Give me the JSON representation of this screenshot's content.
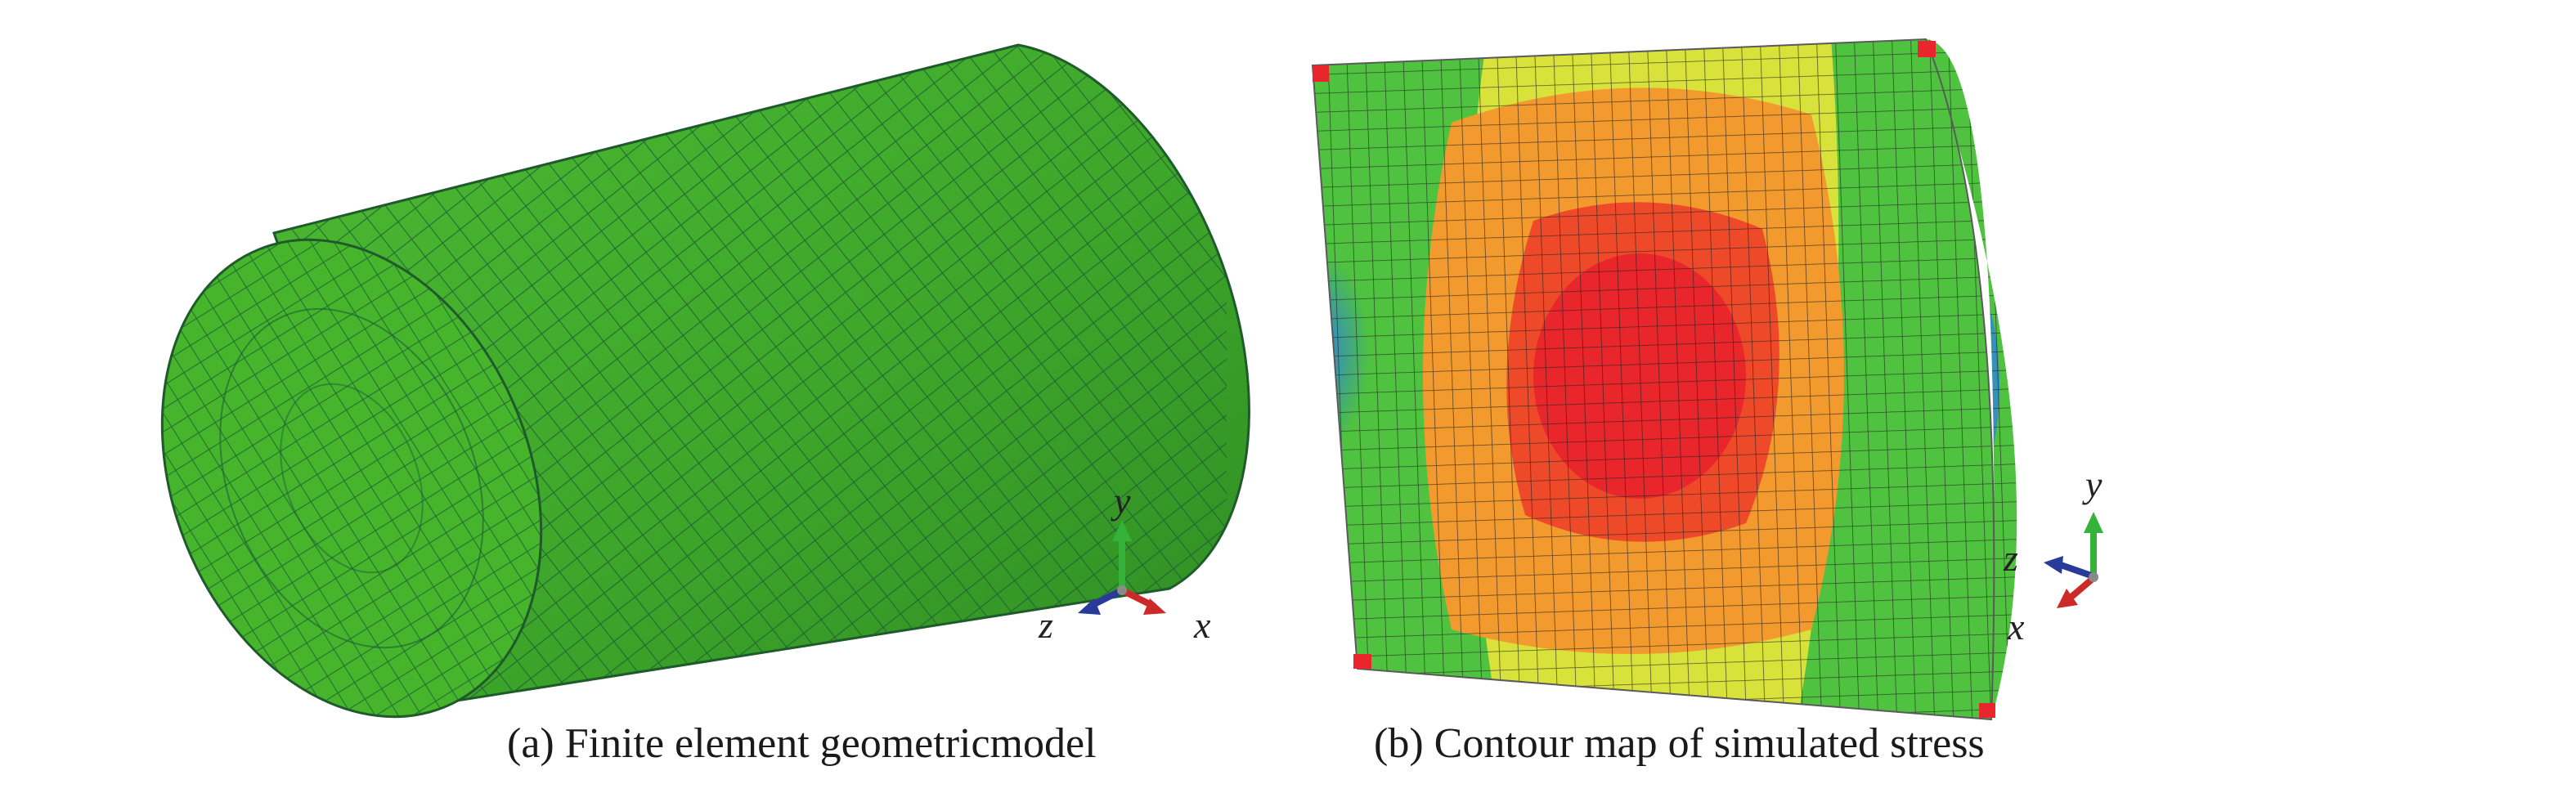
{
  "panels": [
    {
      "caption": "(a) Finite element geometricmodel",
      "axes": {
        "x": "x",
        "y": "y",
        "z": "z"
      }
    },
    {
      "caption": "(b) Contour map of simulated stress",
      "axes": {
        "x": "x",
        "y": "y",
        "z": "z"
      }
    }
  ],
  "colors": {
    "mesh_green": "#43b02a",
    "mesh_line": "#1c5e35",
    "stress_red": "#e8262b",
    "stress_orange": "#f29a2e",
    "stress_yellow": "#d9e23a",
    "stress_green": "#4fc33f",
    "stress_blue": "#2f7fe0",
    "axis_x": "#cc2929",
    "axis_y": "#35b23a",
    "axis_z": "#283a9a"
  }
}
